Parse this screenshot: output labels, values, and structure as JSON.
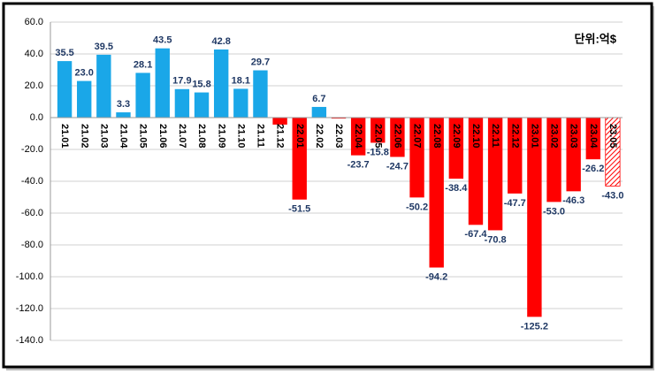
{
  "chart_data": {
    "type": "bar",
    "annotation": "단위:억$",
    "categories": [
      "21.01",
      "21.02",
      "21.03",
      "21.04",
      "21.05",
      "21.06",
      "21.07",
      "21.08",
      "21.09",
      "21.10",
      "21.11",
      "21.12",
      "22.01",
      "22.02",
      "22.03",
      "22.04",
      "22.05",
      "22.06",
      "22.07",
      "22.08",
      "22.09",
      "22.10",
      "22.11",
      "22.12",
      "23.01",
      "23.02",
      "23.03",
      "23.04",
      "23.05"
    ],
    "values": [
      35.5,
      23.0,
      39.5,
      3.3,
      28.1,
      43.5,
      17.9,
      15.8,
      42.8,
      18.1,
      29.7,
      -4.4,
      -51.5,
      6.7,
      -0.6,
      -23.7,
      -15.8,
      -24.7,
      -50.2,
      -94.2,
      -38.4,
      -67.4,
      -70.8,
      -47.7,
      -125.2,
      -53.0,
      -46.3,
      -26.2,
      -43.0
    ],
    "value_labels": [
      "35.5",
      "23.0",
      "39.5",
      "3.3",
      "28.1",
      "43.5",
      "17.9",
      "15.8",
      "42.8",
      "18.1",
      "29.7",
      null,
      "-51.5",
      "6.7",
      null,
      "-23.7",
      "-15.8",
      "-24.7",
      "-50.2",
      "-94.2",
      "-38.4",
      "-67.4",
      "-70.8",
      "-47.7",
      "-125.2",
      "-53.0",
      "-46.3",
      "-26.2",
      "-43.0"
    ],
    "color_positive": "#1aa7e8",
    "color_negative": "#ff0000",
    "hatched_categories": [
      "23.05"
    ],
    "ylim": [
      -140,
      60
    ],
    "yticks": [
      {
        "value": 60,
        "label": "60.0"
      },
      {
        "value": 40,
        "label": "40.0"
      },
      {
        "value": 20,
        "label": "20.0"
      },
      {
        "value": 0,
        "label": "0.0"
      },
      {
        "value": -20,
        "label": "-20.0"
      },
      {
        "value": -40,
        "label": "-40.0"
      },
      {
        "value": -60,
        "label": "-60.0"
      },
      {
        "value": -80,
        "label": "-80.0"
      },
      {
        "value": -100,
        "label": "-100.0"
      },
      {
        "value": -120,
        "label": "-120.0"
      },
      {
        "value": -140,
        "label": "-140.0"
      }
    ],
    "grid": true
  }
}
